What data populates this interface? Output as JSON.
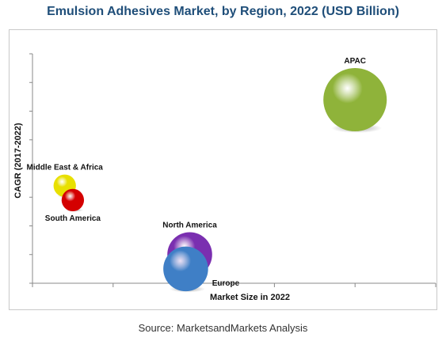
{
  "chart_data": {
    "type": "scatter",
    "title": "Emulsion Adhesives Market, by Region, 2022 (USD Billion)",
    "xlabel": "Market Size in 2022",
    "ylabel": "CAGR (2017-2022)",
    "grid": false,
    "x_ticks": 5,
    "y_ticks": 8,
    "xlim": [
      0,
      10
    ],
    "ylim": [
      0,
      8
    ],
    "series": [
      {
        "name": "APAC",
        "x": 8.0,
        "y": 6.4,
        "size": 8.0,
        "color": "#8fb33a",
        "label_pos": "top"
      },
      {
        "name": "Middle East & Africa",
        "x": 0.8,
        "y": 3.4,
        "size": 1.0,
        "color": "#e8e000",
        "label_pos": "top"
      },
      {
        "name": "South America",
        "x": 1.0,
        "y": 2.9,
        "size": 1.0,
        "color": "#d40000",
        "label_pos": "bottom"
      },
      {
        "name": "North America",
        "x": 3.9,
        "y": 1.0,
        "size": 4.0,
        "color": "#7a2fb0",
        "label_pos": "top"
      },
      {
        "name": "Europe",
        "x": 3.8,
        "y": 0.5,
        "size": 4.0,
        "color": "#3f7fc6",
        "label_pos": "right"
      }
    ]
  },
  "source": "Source: MarketsandMarkets Analysis"
}
